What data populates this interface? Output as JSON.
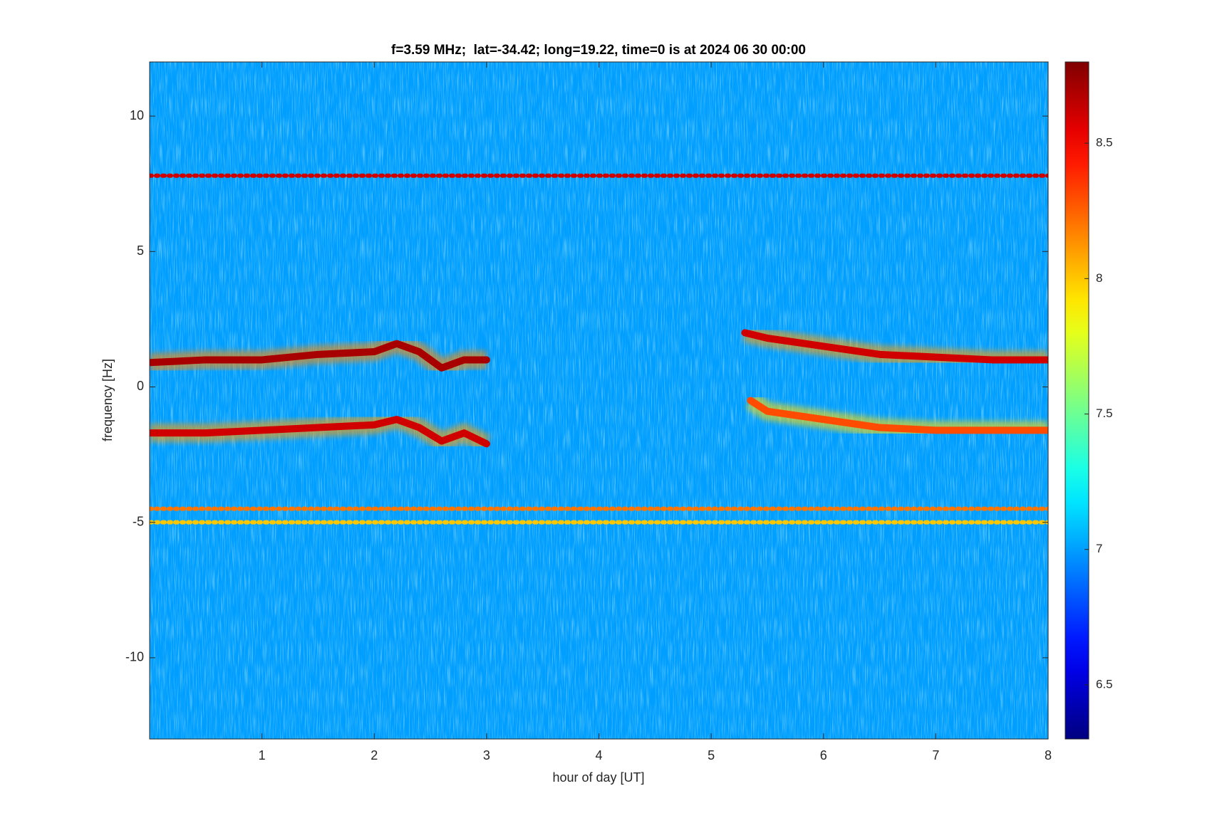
{
  "chart_data": {
    "type": "spectrogram",
    "title": "f=3.59 MHz;  lat=-34.42; long=19.22, time=0 is at 2024 06 30 00:00",
    "x_label": "hour of day [UT]",
    "y_label": "frequency [Hz]",
    "xlim": [
      0,
      8
    ],
    "xticks": [
      1,
      2,
      3,
      4,
      5,
      6,
      7,
      8
    ],
    "ylim": [
      -13,
      12
    ],
    "yticks": [
      -10,
      -5,
      0,
      5,
      10
    ],
    "clim": [
      6.3,
      8.8
    ],
    "cticks": [
      6.5,
      7,
      7.5,
      8,
      8.5
    ],
    "colormap": "jet",
    "background_level": 7.0,
    "features": [
      {
        "level": 8.6,
        "x": [
          0,
          8
        ],
        "y": [
          7.8,
          7.8
        ]
      },
      {
        "level": 8.2,
        "x": [
          0,
          8
        ],
        "y": [
          -4.5,
          -4.5
        ]
      },
      {
        "level": 8.0,
        "x": [
          0,
          8
        ],
        "y": [
          -5.0,
          -5.0
        ]
      },
      {
        "level": 8.7,
        "x": [
          0,
          0.5,
          1,
          1.5,
          2,
          2.2,
          2.4,
          2.6,
          2.8,
          3.0
        ],
        "y": [
          0.9,
          1.0,
          1.0,
          1.2,
          1.3,
          1.6,
          1.3,
          0.7,
          1.0,
          1.0
        ]
      },
      {
        "level": 8.6,
        "x": [
          0,
          0.5,
          1,
          1.5,
          2,
          2.2,
          2.4,
          2.6,
          2.8,
          3.0
        ],
        "y": [
          -1.7,
          -1.7,
          -1.6,
          -1.5,
          -1.4,
          -1.2,
          -1.5,
          -2.0,
          -1.7,
          -2.1
        ]
      },
      {
        "level": 8.6,
        "x": [
          5.3,
          5.5,
          6,
          6.5,
          7,
          7.5,
          8
        ],
        "y": [
          2.0,
          1.8,
          1.5,
          1.2,
          1.1,
          1.0,
          1.0
        ]
      },
      {
        "level": 8.3,
        "x": [
          5.35,
          5.5,
          6,
          6.5,
          7,
          7.5,
          8
        ],
        "y": [
          -0.5,
          -0.9,
          -1.2,
          -1.5,
          -1.6,
          -1.6,
          -1.6
        ]
      }
    ]
  }
}
